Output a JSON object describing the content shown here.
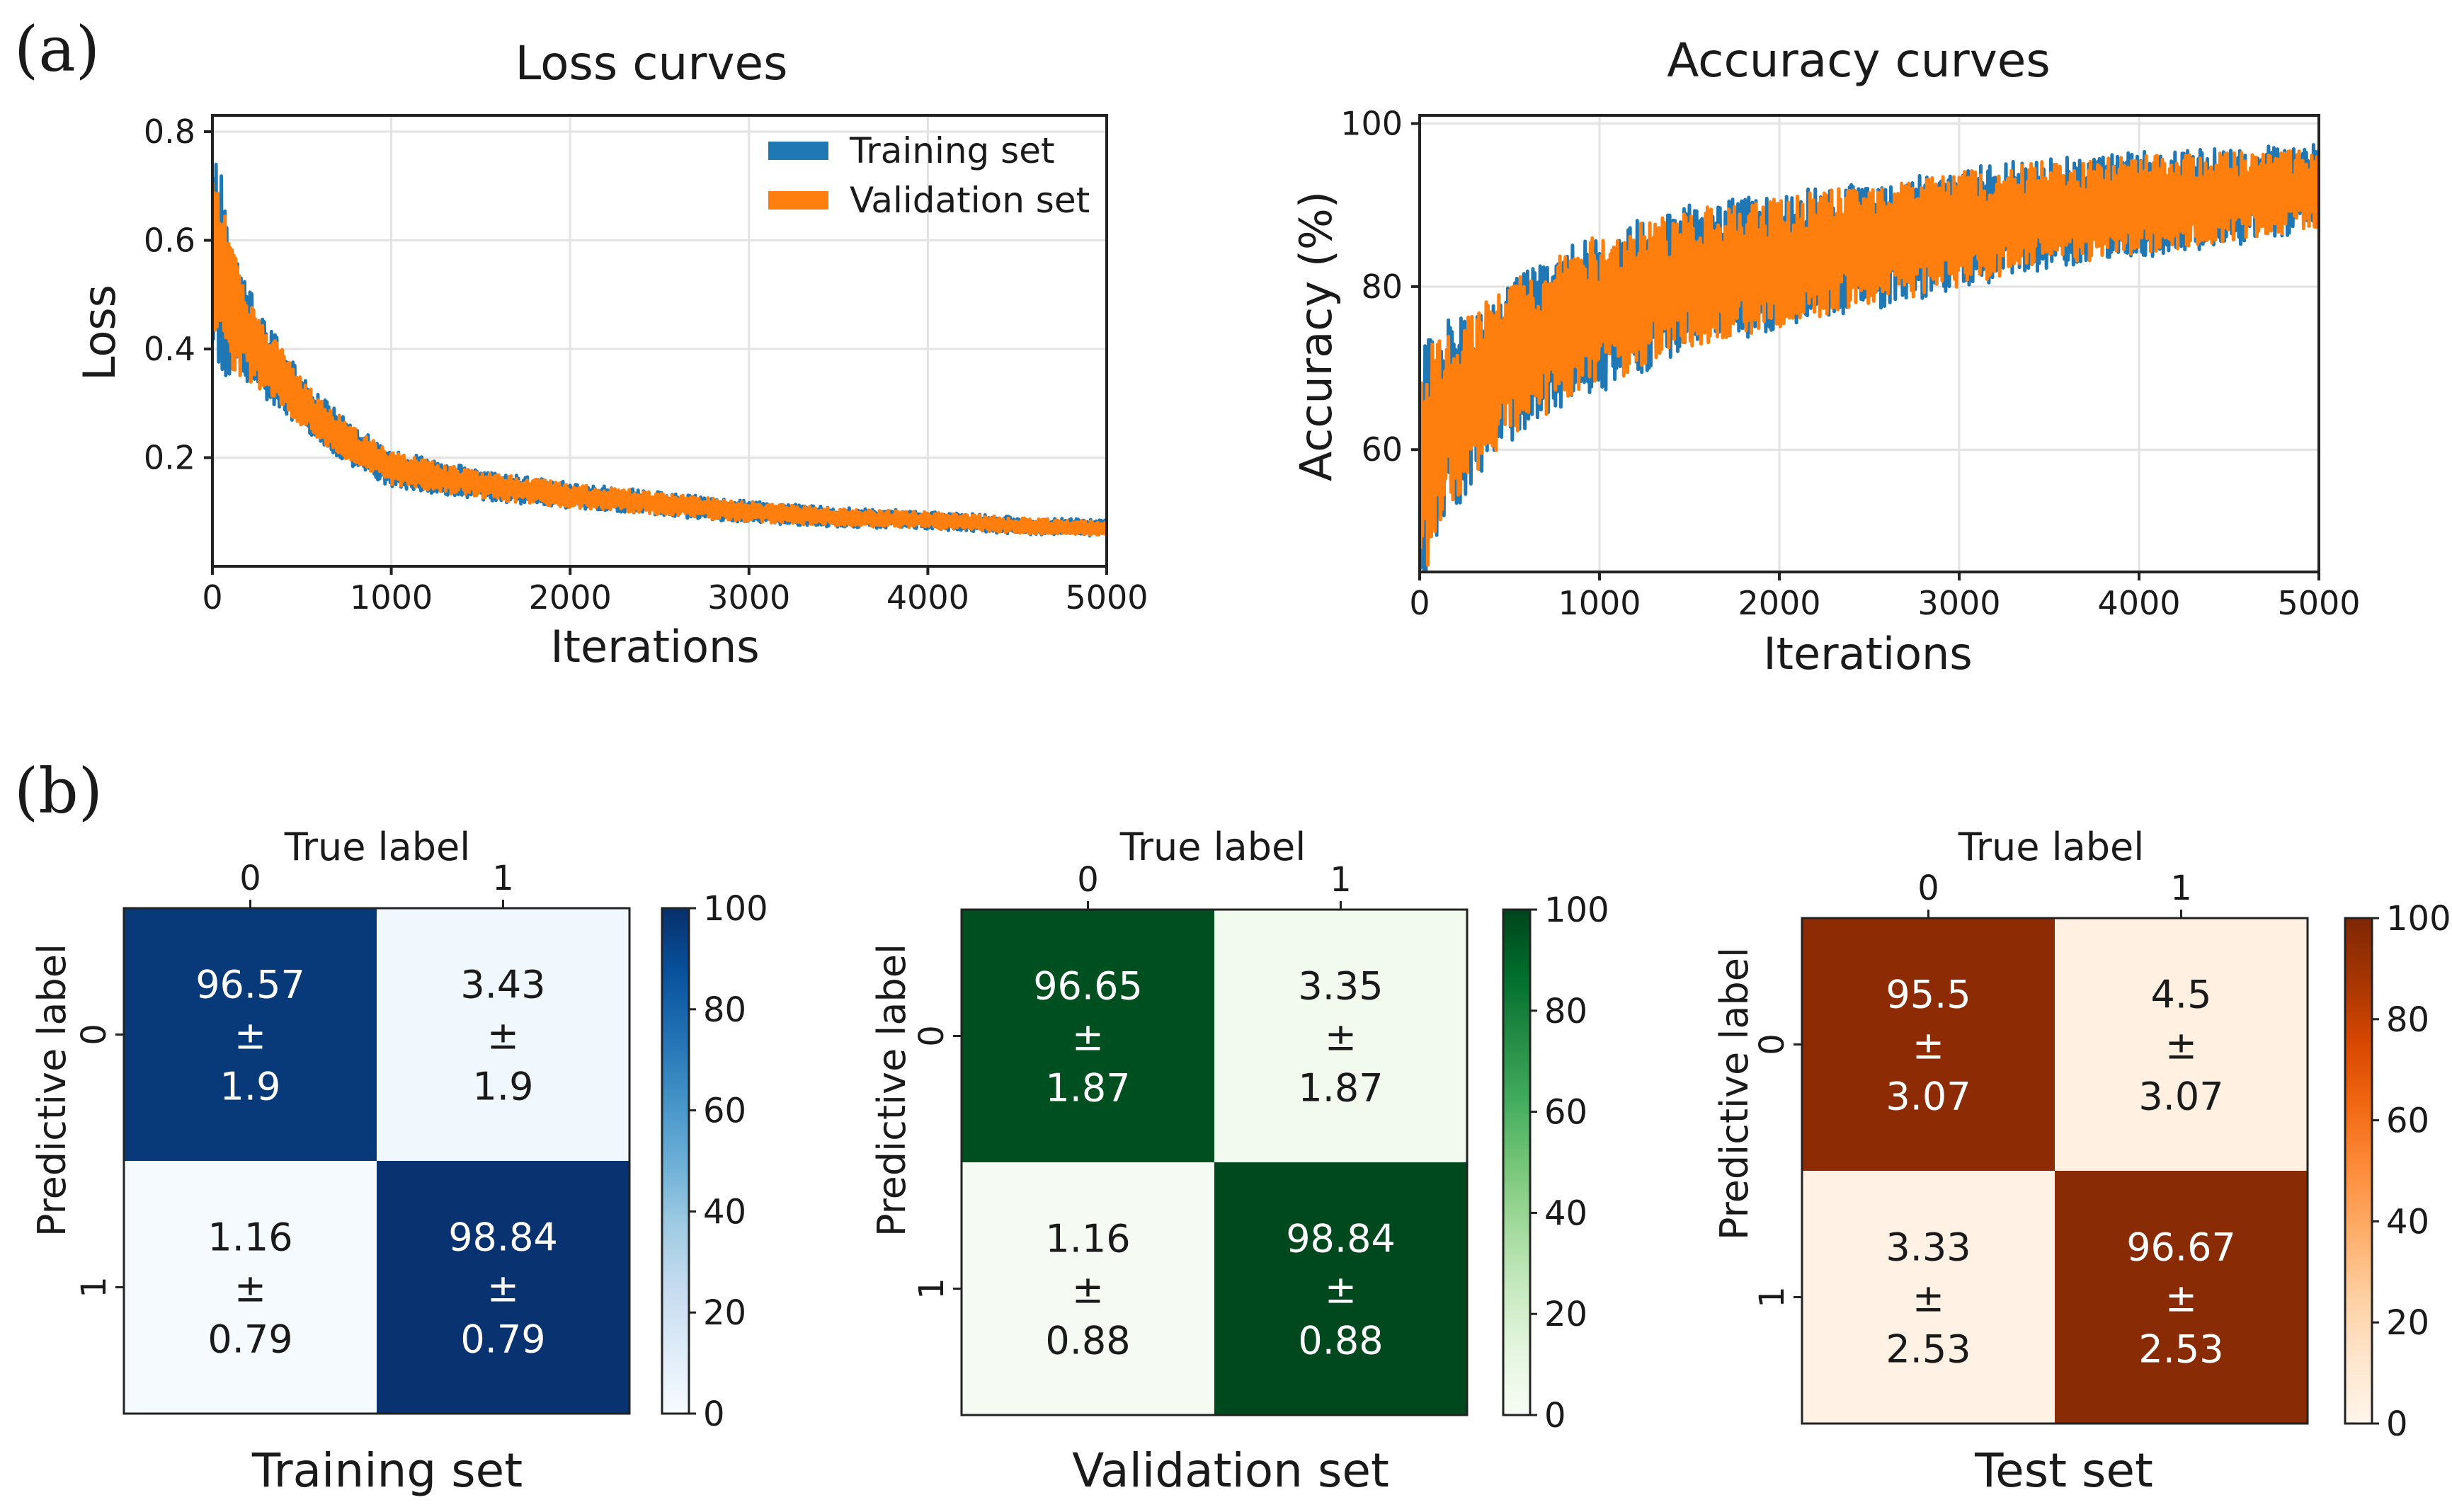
{
  "panels": {
    "a": "(a)",
    "b": "(b)"
  },
  "chart_data": [
    {
      "type": "line",
      "title": "Loss curves",
      "xlabel": "Iterations",
      "ylabel": "Loss",
      "xlim": [
        0,
        5000
      ],
      "ylim": [
        0.0,
        0.83
      ],
      "xticks": [
        0,
        1000,
        2000,
        3000,
        4000,
        5000
      ],
      "yticks": [
        0.2,
        0.4,
        0.6,
        0.8
      ],
      "ytick_decimals": 1,
      "grid": true,
      "legend": "top-right",
      "series": [
        {
          "name": "Training set",
          "color": "#1f77b4",
          "x": [
            0,
            100,
            250,
            500,
            750,
            1000,
            1500,
            2000,
            2500,
            3000,
            3500,
            4000,
            4500,
            5000
          ],
          "values": [
            0.6,
            0.48,
            0.4,
            0.3,
            0.23,
            0.18,
            0.15,
            0.13,
            0.115,
            0.1,
            0.09,
            0.085,
            0.075,
            0.07
          ],
          "noise": [
            0.22,
            0.14,
            0.08,
            0.05,
            0.04,
            0.035,
            0.028,
            0.024,
            0.022,
            0.02,
            0.018,
            0.017,
            0.016,
            0.015
          ]
        },
        {
          "name": "Validation set",
          "color": "#ff7f0e",
          "x": [
            0,
            100,
            250,
            500,
            750,
            1000,
            1500,
            2000,
            2500,
            3000,
            3500,
            4000,
            4500,
            5000
          ],
          "values": [
            0.6,
            0.48,
            0.4,
            0.3,
            0.23,
            0.18,
            0.15,
            0.13,
            0.115,
            0.1,
            0.09,
            0.085,
            0.075,
            0.07
          ],
          "noise": [
            0.2,
            0.12,
            0.07,
            0.045,
            0.035,
            0.03,
            0.025,
            0.022,
            0.02,
            0.018,
            0.016,
            0.015,
            0.014,
            0.013
          ]
        }
      ]
    },
    {
      "type": "line",
      "title": "Accuracy curves",
      "xlabel": "Iterations",
      "ylabel": "Accuracy (%)",
      "xlim": [
        0,
        5000
      ],
      "ylim": [
        45,
        101
      ],
      "xticks": [
        0,
        1000,
        2000,
        3000,
        4000,
        5000
      ],
      "yticks": [
        60,
        80,
        100
      ],
      "ytick_decimals": 0,
      "grid": true,
      "series": [
        {
          "name": "Training set",
          "color": "#1f77b4",
          "x": [
            0,
            100,
            300,
            500,
            750,
            1000,
            1500,
            2000,
            2500,
            3000,
            3500,
            4000,
            4500,
            5000
          ],
          "values": [
            56,
            62,
            67,
            71,
            74,
            77,
            81,
            83,
            85,
            87,
            89,
            90,
            91,
            92
          ],
          "noise": [
            16,
            13,
            11,
            10,
            10,
            10,
            9,
            8.5,
            8,
            7.5,
            7,
            6.5,
            6,
            5.5
          ]
        },
        {
          "name": "Validation set",
          "color": "#ff7f0e",
          "x": [
            0,
            100,
            300,
            500,
            750,
            1000,
            1500,
            2000,
            2500,
            3000,
            3500,
            4000,
            4500,
            5000
          ],
          "values": [
            56,
            62,
            67,
            71,
            74,
            77,
            81,
            83,
            85,
            87,
            89,
            90,
            91,
            92
          ],
          "noise": [
            15,
            12,
            10,
            9.5,
            9.5,
            9.5,
            8.5,
            8,
            7.5,
            7,
            6.5,
            6,
            5.5,
            5
          ]
        }
      ]
    },
    {
      "type": "heatmap",
      "title": "Training set",
      "top_label": "True label",
      "side_label": "Predictive label",
      "col_labels": [
        "0",
        "1"
      ],
      "row_labels": [
        "0",
        "1"
      ],
      "values": [
        [
          96.57,
          3.43
        ],
        [
          1.16,
          98.84
        ]
      ],
      "cell_text": [
        [
          [
            "96.57",
            "±",
            "1.9"
          ],
          [
            "3.43",
            "±",
            "1.9"
          ]
        ],
        [
          [
            "1.16",
            "±",
            "0.79"
          ],
          [
            "98.84",
            "±",
            "0.79"
          ]
        ]
      ],
      "vmin": 0,
      "vmax": 100,
      "colorbar_ticks": [
        0,
        20,
        40,
        60,
        80,
        100
      ],
      "colormap": [
        "#f7fbff",
        "#deebf7",
        "#c6dbef",
        "#9ecae1",
        "#6baed6",
        "#4292c6",
        "#2171b5",
        "#08519c",
        "#08306b"
      ]
    },
    {
      "type": "heatmap",
      "title": "Validation set",
      "top_label": "True label",
      "side_label": "Predictive label",
      "col_labels": [
        "0",
        "1"
      ],
      "row_labels": [
        "0",
        "1"
      ],
      "values": [
        [
          96.65,
          3.35
        ],
        [
          1.16,
          98.84
        ]
      ],
      "cell_text": [
        [
          [
            "96.65",
            "±",
            "1.87"
          ],
          [
            "3.35",
            "±",
            "1.87"
          ]
        ],
        [
          [
            "1.16",
            "±",
            "0.88"
          ],
          [
            "98.84",
            "±",
            "0.88"
          ]
        ]
      ],
      "vmin": 0,
      "vmax": 100,
      "colorbar_ticks": [
        0,
        20,
        40,
        60,
        80,
        100
      ],
      "colormap": [
        "#f7fcf5",
        "#e5f5e0",
        "#c7e9c0",
        "#a1d99b",
        "#74c476",
        "#41ab5d",
        "#238b45",
        "#006d2c",
        "#00441b"
      ]
    },
    {
      "type": "heatmap",
      "title": "Test set",
      "top_label": "True label",
      "side_label": "Predictive label",
      "col_labels": [
        "0",
        "1"
      ],
      "row_labels": [
        "0",
        "1"
      ],
      "values": [
        [
          95.5,
          4.5
        ],
        [
          3.33,
          96.67
        ]
      ],
      "cell_text": [
        [
          [
            "95.5",
            "±",
            "3.07"
          ],
          [
            "4.5",
            "±",
            "3.07"
          ]
        ],
        [
          [
            "3.33",
            "±",
            "2.53"
          ],
          [
            "96.67",
            "±",
            "2.53"
          ]
        ]
      ],
      "vmin": 0,
      "vmax": 100,
      "colorbar_ticks": [
        0,
        20,
        40,
        60,
        80,
        100
      ],
      "colormap": [
        "#fff5eb",
        "#fee6ce",
        "#fdd0a2",
        "#fdae6b",
        "#fd8d3c",
        "#f16913",
        "#d94801",
        "#a63603",
        "#7f2704"
      ]
    }
  ]
}
